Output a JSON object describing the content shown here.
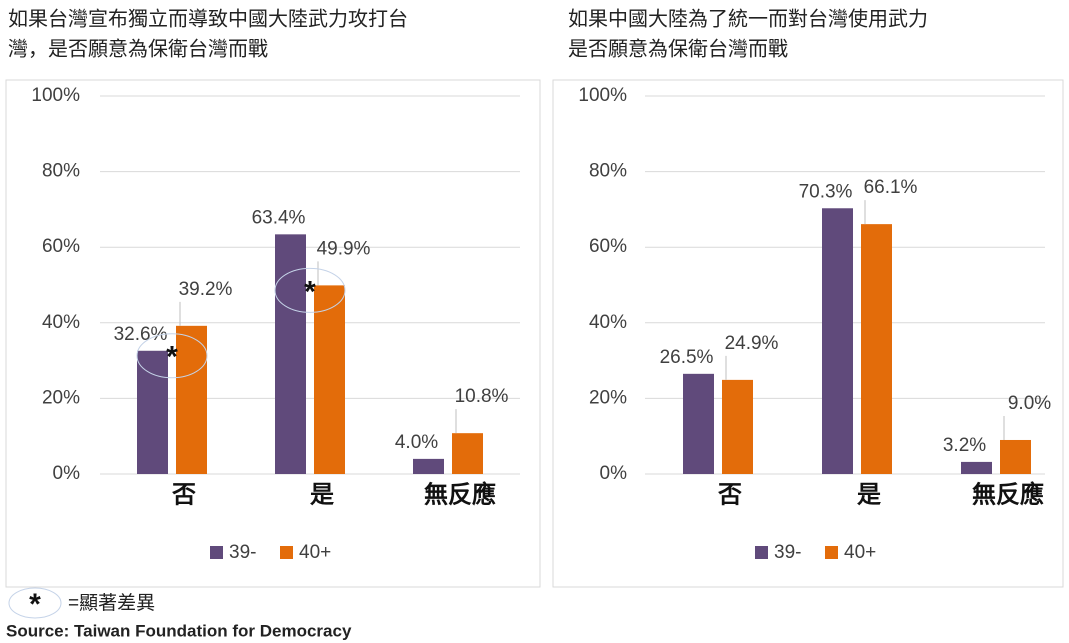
{
  "chart_data": [
    {
      "type": "bar",
      "title": [
        "如果台灣宣布獨立而導致中國大陸武力攻打台",
        "灣，是否願意為保衛台灣而戰"
      ],
      "categories": [
        "否",
        "是",
        "無反應"
      ],
      "series": [
        {
          "name": "39-",
          "color": "#604a7b",
          "values": [
            32.6,
            63.4,
            4.0
          ],
          "value_labels": [
            "32.6%",
            "63.4%",
            "4.0%"
          ]
        },
        {
          "name": "40+",
          "color": "#e36c0a",
          "values": [
            39.2,
            49.9,
            10.8
          ],
          "value_labels": [
            "39.2%",
            "49.9%",
            "10.8%"
          ]
        }
      ],
      "significant": [
        true,
        true,
        false
      ],
      "ylim": [
        0,
        100
      ],
      "yticks": [
        {
          "value": 0,
          "label": "0%"
        },
        {
          "value": 20,
          "label": "20%"
        },
        {
          "value": 40,
          "label": "40%"
        },
        {
          "value": 60,
          "label": "60%"
        },
        {
          "value": 80,
          "label": "80%"
        },
        {
          "value": 100,
          "label": "100%"
        }
      ],
      "grid": true,
      "legend": "bottom"
    },
    {
      "type": "bar",
      "title": [
        "如果中國大陸為了統一而對台灣使用武力",
        "是否願意為保衛台灣而戰"
      ],
      "categories": [
        "否",
        "是",
        "無反應"
      ],
      "series": [
        {
          "name": "39-",
          "color": "#604a7b",
          "values": [
            26.5,
            70.3,
            3.2
          ],
          "value_labels": [
            "26.5%",
            "70.3%",
            "3.2%"
          ]
        },
        {
          "name": "40+",
          "color": "#e36c0a",
          "values": [
            24.9,
            66.1,
            9.0
          ],
          "value_labels": [
            "24.9%",
            "66.1%",
            "9.0%"
          ]
        }
      ],
      "significant": [
        false,
        false,
        false
      ],
      "ylim": [
        0,
        100
      ],
      "yticks": [
        {
          "value": 0,
          "label": "0%"
        },
        {
          "value": 20,
          "label": "20%"
        },
        {
          "value": 40,
          "label": "40%"
        },
        {
          "value": 60,
          "label": "60%"
        },
        {
          "value": 80,
          "label": "80%"
        },
        {
          "value": 100,
          "label": "100%"
        }
      ],
      "grid": true,
      "legend": "bottom"
    }
  ],
  "footnote": {
    "symbol": "*",
    "text": "=顯著差異"
  },
  "source": "Source: Taiwan Foundation for Democracy"
}
